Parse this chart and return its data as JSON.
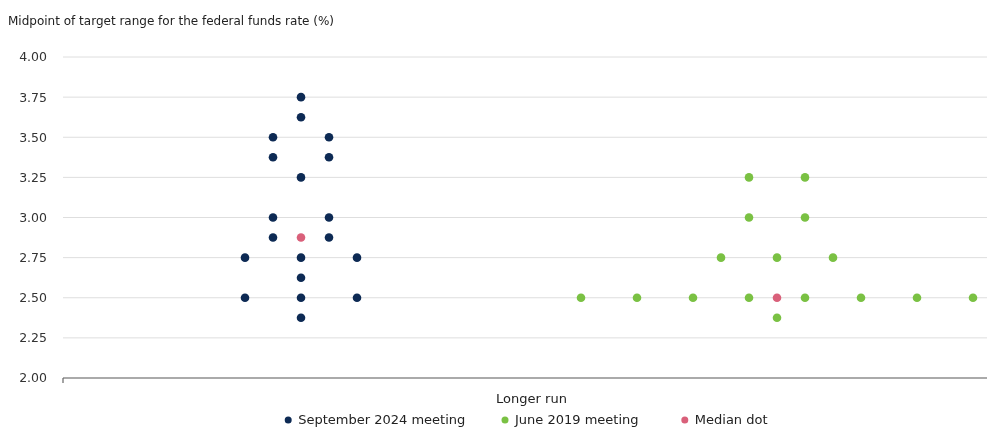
{
  "chart_data": {
    "type": "scatter",
    "ylabel": "Midpoint of target range for the federal funds rate (%)",
    "xlabel": "Longer run",
    "categories": [
      null,
      null,
      null,
      null,
      null,
      null,
      null,
      null,
      null,
      null,
      null,
      null,
      null,
      null,
      null,
      null,
      null,
      null,
      null,
      null,
      null,
      null,
      null,
      null,
      null,
      null,
      null,
      null,
      null,
      null,
      null,
      null,
      null
    ],
    "series": [
      {
        "name": "September 2024 meeting",
        "color": "#0d2a54",
        "values": [
          null,
          null,
          null,
          null,
          null,
          null,
          2.75,
          3.5,
          3.75,
          3.5,
          2.75,
          null,
          null,
          null,
          null,
          null,
          null,
          null,
          null,
          null,
          null,
          null,
          null,
          null,
          null,
          null,
          null,
          null,
          null,
          null,
          null,
          null,
          null
        ]
      },
      {
        "color": "#0d2a54",
        "values": [
          null,
          null,
          null,
          null,
          null,
          null,
          2.5,
          3.375,
          3.625,
          3.375,
          2.5,
          null,
          null,
          null,
          null,
          null,
          null,
          null,
          null,
          null,
          null,
          null,
          null,
          null,
          null,
          null,
          null,
          null,
          null,
          null,
          null,
          null,
          null
        ]
      },
      {
        "color": "#0d2a54",
        "values": [
          null,
          null,
          null,
          null,
          null,
          null,
          null,
          3.0,
          3.25,
          3.0,
          null,
          null,
          null,
          null,
          null,
          null,
          null,
          null,
          null,
          null,
          null,
          null,
          null,
          null,
          null,
          null,
          null,
          null,
          null,
          null,
          null,
          null,
          null
        ]
      },
      {
        "color": "#0d2a54",
        "values": [
          null,
          null,
          null,
          null,
          null,
          null,
          null,
          2.875,
          2.75,
          2.875,
          null,
          null,
          null,
          null,
          null,
          null,
          null,
          null,
          null,
          null,
          null,
          null,
          null,
          null,
          null,
          null,
          null,
          null,
          null,
          null,
          null,
          null,
          null
        ]
      },
      {
        "color": "#0d2a54",
        "values": [
          null,
          null,
          null,
          null,
          null,
          null,
          null,
          null,
          2.625,
          null,
          null,
          null,
          null,
          null,
          null,
          null,
          null,
          null,
          null,
          null,
          null,
          null,
          null,
          null,
          null,
          null,
          null,
          null,
          null,
          null,
          null,
          null,
          null
        ]
      },
      {
        "color": "#0d2a54",
        "values": [
          null,
          null,
          null,
          null,
          null,
          null,
          null,
          null,
          2.5,
          null,
          null,
          null,
          null,
          null,
          null,
          null,
          null,
          null,
          null,
          null,
          null,
          null,
          null,
          null,
          null,
          null,
          null,
          null,
          null,
          null,
          null,
          null,
          null
        ]
      },
      {
        "color": "#0d2a54",
        "values": [
          null,
          null,
          null,
          null,
          null,
          null,
          null,
          null,
          2.375,
          null,
          null,
          null,
          null,
          null,
          null,
          null,
          null,
          null,
          null,
          null,
          null,
          null,
          null,
          null,
          null,
          null,
          null,
          null,
          null,
          null,
          null,
          null,
          null
        ]
      },
      {
        "name": "June 2019 meeting",
        "color": "#7ac143",
        "values": [
          null,
          null,
          null,
          null,
          null,
          null,
          null,
          null,
          null,
          null,
          null,
          null,
          null,
          null,
          null,
          null,
          null,
          null,
          2.5,
          null,
          2.5,
          null,
          2.5,
          2.75,
          3.25,
          2.75,
          3.25,
          2.75,
          2.5,
          null,
          2.5,
          null,
          2.5
        ]
      },
      {
        "color": "#7ac143",
        "values": [
          null,
          null,
          null,
          null,
          null,
          null,
          null,
          null,
          null,
          null,
          null,
          null,
          null,
          null,
          null,
          null,
          null,
          null,
          null,
          null,
          null,
          null,
          null,
          null,
          3.0,
          2.375,
          3.0,
          null,
          null,
          null,
          null,
          null,
          null
        ]
      },
      {
        "color": "#7ac143",
        "values": [
          null,
          null,
          null,
          null,
          null,
          null,
          null,
          null,
          null,
          null,
          null,
          null,
          null,
          null,
          null,
          null,
          null,
          null,
          null,
          null,
          null,
          null,
          null,
          null,
          2.5,
          null,
          2.5,
          null,
          null,
          null,
          null,
          null,
          null
        ]
      },
      {
        "name": "Median dot",
        "color": "#d9607a",
        "values": [
          null,
          null,
          null,
          null,
          null,
          null,
          null,
          null,
          2.875,
          null,
          null,
          null,
          null,
          null,
          null,
          null,
          null,
          null,
          null,
          null,
          null,
          null,
          null,
          null,
          null,
          2.5,
          null,
          null,
          null,
          null,
          null,
          null,
          null
        ]
      }
    ],
    "ylim": [
      2,
      4
    ],
    "yticks": [
      {
        "value": 2,
        "label": "2.00"
      },
      {
        "value": 2.25,
        "label": "2.25"
      },
      {
        "value": 2.5,
        "label": "2.50"
      },
      {
        "value": 2.75,
        "label": "2.75"
      },
      {
        "value": 3,
        "label": "3.00"
      },
      {
        "value": 3.25,
        "label": "3.25"
      },
      {
        "value": 3.5,
        "label": "3.50"
      },
      {
        "value": 3.75,
        "label": "3.75"
      },
      {
        "value": 4,
        "label": "4.00"
      }
    ],
    "tick_labels": "y",
    "grid": "y",
    "legend": "bottom",
    "marker": "circle"
  }
}
